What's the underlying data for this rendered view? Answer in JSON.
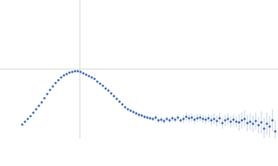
{
  "chart_data": {
    "type": "scatter",
    "xlim": [
      0,
      4
    ],
    "ylim": [
      0,
      2
    ],
    "vline": 1.15,
    "hline": 1.0,
    "ref_color": "#d0d0d0",
    "series": [
      {
        "color": "#3a66b5",
        "error_color": "#a9bde0",
        "x": [
          0.32,
          0.36,
          0.4,
          0.44,
          0.48,
          0.52,
          0.56,
          0.6,
          0.64,
          0.68,
          0.72,
          0.76,
          0.8,
          0.84,
          0.88,
          0.92,
          0.96,
          1.0,
          1.04,
          1.08,
          1.12,
          1.16,
          1.2,
          1.24,
          1.28,
          1.32,
          1.36,
          1.4,
          1.44,
          1.48,
          1.52,
          1.56,
          1.6,
          1.64,
          1.68,
          1.72,
          1.76,
          1.8,
          1.84,
          1.88,
          1.92,
          1.96,
          2.0,
          2.04,
          2.08,
          2.12,
          2.16,
          2.2,
          2.24,
          2.28,
          2.32,
          2.36,
          2.4,
          2.44,
          2.48,
          2.52,
          2.56,
          2.6,
          2.64,
          2.68,
          2.72,
          2.76,
          2.8,
          2.84,
          2.88,
          2.92,
          2.96,
          3.0,
          3.04,
          3.08,
          3.12,
          3.16,
          3.2,
          3.24,
          3.28,
          3.32,
          3.36,
          3.4,
          3.44,
          3.48,
          3.52,
          3.56,
          3.6,
          3.64,
          3.68,
          3.72,
          3.76,
          3.8,
          3.84,
          3.88,
          3.92,
          3.96
        ],
        "values": [
          0.2,
          0.24,
          0.28,
          0.32,
          0.37,
          0.42,
          0.47,
          0.52,
          0.58,
          0.64,
          0.7,
          0.75,
          0.8,
          0.84,
          0.88,
          0.91,
          0.93,
          0.95,
          0.96,
          0.97,
          0.97,
          0.96,
          0.94,
          0.92,
          0.9,
          0.88,
          0.86,
          0.82,
          0.79,
          0.76,
          0.72,
          0.69,
          0.65,
          0.61,
          0.57,
          0.53,
          0.49,
          0.45,
          0.42,
          0.4,
          0.38,
          0.36,
          0.34,
          0.33,
          0.31,
          0.3,
          0.29,
          0.28,
          0.3,
          0.26,
          0.27,
          0.25,
          0.28,
          0.26,
          0.29,
          0.27,
          0.3,
          0.26,
          0.28,
          0.31,
          0.29,
          0.3,
          0.27,
          0.29,
          0.3,
          0.28,
          0.27,
          0.29,
          0.26,
          0.28,
          0.25,
          0.29,
          0.22,
          0.26,
          0.28,
          0.24,
          0.27,
          0.24,
          0.23,
          0.26,
          0.28,
          0.22,
          0.24,
          0.21,
          0.25,
          0.19,
          0.23,
          0.14,
          0.21,
          0.17,
          0.26,
          0.1
        ],
        "errors": [
          0.01,
          0.01,
          0.01,
          0.01,
          0.01,
          0.01,
          0.01,
          0.01,
          0.01,
          0.01,
          0.01,
          0.01,
          0.01,
          0.01,
          0.01,
          0.01,
          0.01,
          0.01,
          0.01,
          0.01,
          0.01,
          0.01,
          0.01,
          0.01,
          0.01,
          0.01,
          0.01,
          0.01,
          0.01,
          0.01,
          0.01,
          0.02,
          0.02,
          0.02,
          0.02,
          0.02,
          0.02,
          0.02,
          0.02,
          0.02,
          0.02,
          0.03,
          0.03,
          0.03,
          0.03,
          0.03,
          0.03,
          0.03,
          0.04,
          0.04,
          0.04,
          0.04,
          0.04,
          0.04,
          0.04,
          0.04,
          0.04,
          0.04,
          0.06,
          0.06,
          0.06,
          0.06,
          0.06,
          0.06,
          0.06,
          0.06,
          0.06,
          0.06,
          0.08,
          0.08,
          0.08,
          0.08,
          0.08,
          0.08,
          0.08,
          0.08,
          0.08,
          0.08,
          0.12,
          0.12,
          0.12,
          0.12,
          0.12,
          0.12,
          0.12,
          0.12,
          0.16,
          0.16,
          0.16,
          0.16,
          0.16,
          0.16
        ]
      }
    ]
  }
}
